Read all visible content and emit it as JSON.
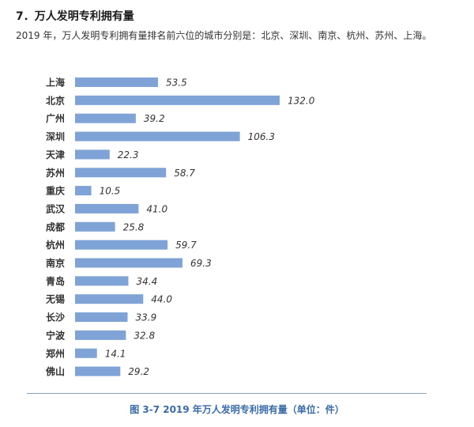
{
  "header": {
    "title": "7．万人发明专利拥有量",
    "intro": "2019 年，万人发明专利拥有量排名前六位的城市分别是：北京、深圳、南京、杭州、苏州、上海。"
  },
  "chart_data": {
    "type": "bar",
    "orientation": "horizontal",
    "categories": [
      "上海",
      "北京",
      "广州",
      "深圳",
      "天津",
      "苏州",
      "重庆",
      "武汉",
      "成都",
      "杭州",
      "南京",
      "青岛",
      "无锡",
      "长沙",
      "宁波",
      "郑州",
      "佛山"
    ],
    "values": [
      53.5,
      132.0,
      39.2,
      106.3,
      22.3,
      58.7,
      10.5,
      41.0,
      25.8,
      59.7,
      69.3,
      34.4,
      44.0,
      33.9,
      32.8,
      14.1,
      29.2
    ],
    "value_labels": [
      "53.5",
      "132.0",
      "39.2",
      "106.3",
      "22.3",
      "58.7",
      "10.5",
      "41.0",
      "25.8",
      "59.7",
      "69.3",
      "34.4",
      "44.0",
      "33.9",
      "32.8",
      "14.1",
      "29.2"
    ],
    "bar_color": "#7fa3d6",
    "xlim": [
      0,
      132
    ],
    "grid": false,
    "legend": "none"
  },
  "caption": "图 3-7  2019 年万人发明专利拥有量（单位：件）",
  "colors": {
    "caption": "#3a6ba8",
    "divider": "#8aa0b8",
    "bar": "#7fa3d6"
  }
}
